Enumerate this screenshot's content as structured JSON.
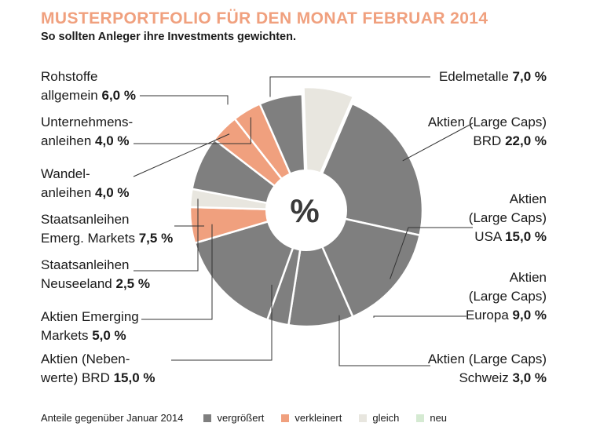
{
  "title": "MUSTERPORTFOLIO FÜR DEN MONAT FEBRUAR 2014",
  "subtitle": "So sollten Anleger ihre Investments gewichten.",
  "center_label": "%",
  "colors": {
    "vergroessert": "#7f7f7f",
    "verkleinert": "#f0a07e",
    "gleich": "#e8e6df",
    "neu": "#d5ead2",
    "title": "#f0a07e"
  },
  "legend": {
    "intro": "Anteile gegenüber Januar 2014",
    "items": [
      {
        "label": "vergrößert",
        "color": "#7f7f7f"
      },
      {
        "label": "verkleinert",
        "color": "#f0a07e"
      },
      {
        "label": "gleich",
        "color": "#e8e6df"
      },
      {
        "label": "neu",
        "color": "#d5ead2"
      }
    ]
  },
  "chart_data": {
    "type": "pie",
    "title": "MUSTERPORTFOLIO FÜR DEN MONAT FEBRUAR 2014",
    "unit": "%",
    "slices": [
      {
        "label_lines": [
          "Edelmetalle"
        ],
        "value_text": "7,0 %",
        "value": 7.0,
        "status": "gleich"
      },
      {
        "label_lines": [
          "Aktien (Large Caps)",
          "BRD"
        ],
        "value_text": "22,0 %",
        "value": 22.0,
        "status": "vergrößert"
      },
      {
        "label_lines": [
          "Aktien",
          "(Large Caps)",
          "USA"
        ],
        "value_text": "15,0 %",
        "value": 15.0,
        "status": "vergrößert"
      },
      {
        "label_lines": [
          "Aktien",
          "(Large Caps)",
          "Europa"
        ],
        "value_text": "9,0 %",
        "value": 9.0,
        "status": "vergrößert"
      },
      {
        "label_lines": [
          "Aktien (Large Caps)",
          "Schweiz"
        ],
        "value_text": "3,0 %",
        "value": 3.0,
        "status": "vergrößert"
      },
      {
        "label_lines": [
          "Aktien (Neben-",
          "werte) BRD"
        ],
        "value_text": "15,0 %",
        "value": 15.0,
        "status": "vergrößert"
      },
      {
        "label_lines": [
          "Aktien Emerging",
          "Markets"
        ],
        "value_text": "5,0 %",
        "value": 5.0,
        "status": "verkleinert"
      },
      {
        "label_lines": [
          "Staatsanleihen",
          "Neuseeland"
        ],
        "value_text": "2,5 %",
        "value": 2.5,
        "status": "gleich"
      },
      {
        "label_lines": [
          "Staatsanleihen",
          "Emerg. Markets"
        ],
        "value_text": "7,5 %",
        "value": 7.5,
        "status": "vergrößert"
      },
      {
        "label_lines": [
          "Wandel-",
          "anleihen"
        ],
        "value_text": "4,0 %",
        "value": 4.0,
        "status": "verkleinert"
      },
      {
        "label_lines": [
          "Unternehmens-",
          "anleihen"
        ],
        "value_text": "4,0 %",
        "value": 4.0,
        "status": "verkleinert"
      },
      {
        "label_lines": [
          "Rohstoffe",
          "allgemein"
        ],
        "value_text": "6,0 %",
        "value": 6.0,
        "status": "vergrößert"
      }
    ]
  }
}
